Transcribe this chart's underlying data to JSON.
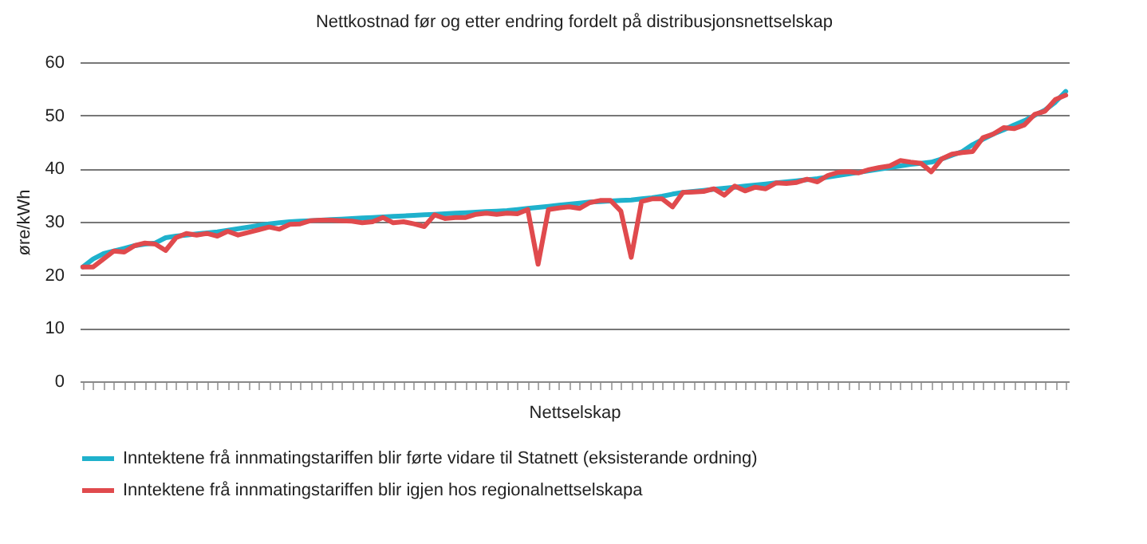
{
  "chart_data": {
    "type": "line",
    "title": "Nettkostnad før og etter endring fordelt på distribusjonsnettselskap",
    "xlabel": "Nettselskap",
    "ylabel": "øre/kWh",
    "categories": [
      null,
      null,
      null,
      null,
      null,
      null,
      null,
      null,
      null,
      null,
      null,
      null,
      null,
      null,
      null,
      null,
      null,
      null,
      null,
      null,
      null,
      null,
      null,
      null,
      null,
      null,
      null,
      null,
      null,
      null,
      null,
      null,
      null,
      null,
      null,
      null,
      null,
      null,
      null,
      null,
      null,
      null,
      null,
      null,
      null,
      null,
      null,
      null,
      null,
      null,
      null,
      null,
      null,
      null,
      null,
      null,
      null,
      null,
      null,
      null,
      null,
      null,
      null,
      null,
      null,
      null,
      null,
      null,
      null,
      null,
      null,
      null,
      null,
      null,
      null,
      null,
      null,
      null,
      null,
      null,
      null,
      null,
      null,
      null,
      null,
      null,
      null,
      null,
      null,
      null,
      null,
      null,
      null,
      null,
      null,
      null
    ],
    "series": [
      {
        "name": "Inntektene frå innmatingstariffen blir førte vidare til Statnett (eksisterande ordning)",
        "color": "#1fb1cc",
        "values": [
          21.5,
          23,
          24,
          24.5,
          25,
          25.5,
          25.8,
          26,
          27,
          27.3,
          27.5,
          27.7,
          27.9,
          28.1,
          28.4,
          28.7,
          29,
          29.3,
          29.6,
          29.8,
          30,
          30.1,
          30.2,
          30.3,
          30.4,
          30.5,
          30.6,
          30.7,
          30.8,
          30.9,
          31,
          31.1,
          31.2,
          31.3,
          31.4,
          31.5,
          31.6,
          31.7,
          31.8,
          31.9,
          32,
          32.1,
          32.3,
          32.5,
          32.7,
          32.9,
          33.1,
          33.3,
          33.5,
          33.7,
          33.8,
          33.9,
          34,
          34.1,
          34.3,
          34.5,
          34.8,
          35.2,
          35.5,
          35.7,
          35.9,
          36.1,
          36.3,
          36.5,
          36.7,
          36.9,
          37.1,
          37.3,
          37.5,
          37.7,
          37.9,
          38.1,
          38.4,
          38.7,
          39,
          39.3,
          39.6,
          39.9,
          40.2,
          40.5,
          40.8,
          41,
          41.2,
          41.8,
          42.5,
          43.2,
          44.5,
          45.5,
          46.5,
          47.3,
          48.2,
          49,
          50,
          51,
          52.5,
          54.5
        ]
      },
      {
        "name": "Inntektene frå innmatingstariffen blir igjen hos regionalnettselskapa",
        "color": "#e04a4d",
        "values": [
          21.5,
          21.5,
          23,
          24.5,
          24.3,
          25.5,
          26,
          25.8,
          24.6,
          27,
          27.8,
          27.5,
          27.8,
          27.3,
          28.2,
          27.5,
          28,
          28.5,
          29,
          28.6,
          29.5,
          29.6,
          30.2,
          30.3,
          30.3,
          30.2,
          30.1,
          29.8,
          30,
          30.8,
          29.8,
          30,
          29.6,
          29.1,
          31.3,
          30.6,
          30.8,
          30.8,
          31.4,
          31.6,
          31.4,
          31.6,
          31.5,
          32.3,
          22,
          32.3,
          32.6,
          32.8,
          32.5,
          33.6,
          34,
          34,
          32,
          23.3,
          33.8,
          34.3,
          34.3,
          32.8,
          35.5,
          35.6,
          35.7,
          36.2,
          35,
          36.7,
          35.8,
          36.5,
          36.2,
          37.3,
          37.2,
          37.4,
          38,
          37.5,
          38.7,
          39.3,
          39.4,
          39.2,
          39.8,
          40.2,
          40.5,
          41.5,
          41.2,
          41,
          39.4,
          41.8,
          42.7,
          43,
          43.2,
          45.8,
          46.5,
          47.7,
          47.5,
          48.2,
          50.2,
          50.8,
          53,
          53.8
        ]
      }
    ],
    "ylim": [
      0,
      60
    ],
    "yticks": [
      0,
      10,
      20,
      30,
      40,
      50,
      60
    ],
    "grid": "y",
    "legend": "bottom",
    "tick_labels": "y",
    "line_style": "solid",
    "marker": "none"
  }
}
